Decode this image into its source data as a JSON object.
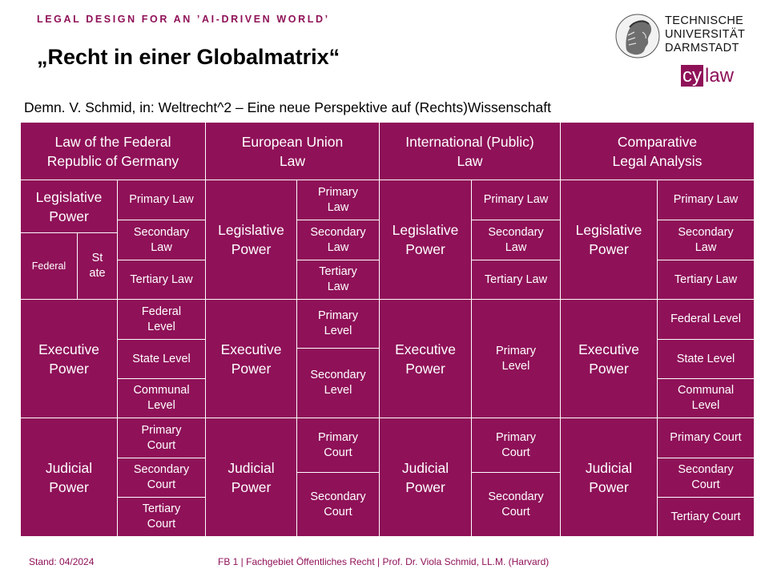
{
  "header": {
    "kicker": "LEGAL DESIGN FOR AN ’AI-DRIVEN WORLD’",
    "title": "„Recht in einer Globalmatrix“",
    "subtitle": "Demn. V. Schmid, in: Weltrecht^2 – Eine neue Perspektive auf (Rechts)Wissenschaft"
  },
  "logo": {
    "line1": "TECHNISCHE",
    "line2": "UNIVERSITÄT",
    "line3": "DARMSTADT",
    "cy": "cy",
    "law": "law"
  },
  "matrix": {
    "headers": [
      "Law of the Federal\nRepublic of Germany",
      "European Union\nLaw",
      "International (Public)\nLaw",
      "Comparative\nLegal Analysis"
    ],
    "de": {
      "legislative": "Legislative\nPower",
      "federal": "Federal",
      "state": "St\nate",
      "legislative_items": [
        "Primary Law",
        "Secondary\nLaw",
        "Tertiary Law"
      ],
      "executive": "Executive\nPower",
      "executive_items": [
        "Federal\nLevel",
        "State Level",
        "Communal\nLevel"
      ],
      "judicial": "Judicial\nPower",
      "judicial_items": [
        "Primary\nCourt",
        "Secondary\nCourt",
        "Tertiary\nCourt"
      ]
    },
    "eu": {
      "legislative": "Legislative\nPower",
      "legislative_items": [
        "Primary\nLaw",
        "Secondary\nLaw",
        "Tertiary\nLaw"
      ],
      "executive": "Executive\nPower",
      "executive_items": [
        "Primary\nLevel",
        "Secondary\nLevel"
      ],
      "judicial": "Judicial\nPower",
      "judicial_items": [
        "Primary\nCourt",
        "Secondary\nCourt"
      ]
    },
    "intl": {
      "legislative": "Legislative\nPower",
      "legislative_items": [
        "Primary Law",
        "Secondary\nLaw",
        "Tertiary Law"
      ],
      "executive": "Executive\nPower",
      "executive_items": [
        "Primary\nLevel"
      ],
      "judicial": "Judicial\nPower",
      "judicial_items": [
        "Primary\nCourt",
        "Secondary\nCourt"
      ]
    },
    "comp": {
      "legislative": "Legislative\nPower",
      "legislative_items": [
        "Primary Law",
        "Secondary\nLaw",
        "Tertiary Law"
      ],
      "executive": "Executive\nPower",
      "executive_items": [
        "Federal Level",
        "State Level",
        "Communal\nLevel"
      ],
      "judicial": "Judicial\nPower",
      "judicial_items": [
        "Primary Court",
        "Secondary\nCourt",
        "Tertiary Court"
      ]
    }
  },
  "footer": {
    "date": "Stand: 04/2024",
    "credit": "FB 1 | Fachgebiet Öffentliches Recht | Prof. Dr. Viola Schmid, LL.M. (Harvard)"
  },
  "colors": {
    "accent": "#8f1158"
  }
}
